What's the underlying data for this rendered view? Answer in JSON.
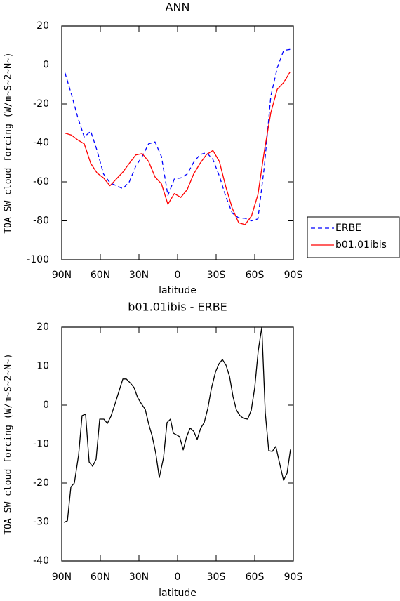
{
  "chart_data": [
    {
      "type": "line",
      "title": "ANN",
      "x_label": "latitude",
      "y_label": "TOA SW cloud forcing (W/m~S~2~N~)",
      "x": [
        87.5,
        82.5,
        77.5,
        72.5,
        67.5,
        62.5,
        57.5,
        52.5,
        47.5,
        42.5,
        37.5,
        32.5,
        27.5,
        22.5,
        17.5,
        12.5,
        7.5,
        2.5,
        -2.5,
        -7.5,
        -12.5,
        -17.5,
        -22.5,
        -27.5,
        -32.5,
        -37.5,
        -42.5,
        -47.5,
        -52.5,
        -57.5,
        -62.5,
        -67.5,
        -72.5,
        -77.5,
        -82.5,
        -87.5
      ],
      "series": [
        {
          "name": "ERBE",
          "color": "#0000ff",
          "dashed": true,
          "values": [
            -4,
            -15,
            -27,
            -37,
            -34,
            -44,
            -56,
            -60.5,
            -62,
            -63.5,
            -60,
            -52,
            -47,
            -40.5,
            -39.5,
            -47,
            -67,
            -58.5,
            -58,
            -56,
            -50,
            -46,
            -45,
            -48.5,
            -57,
            -67.5,
            -76,
            -78.5,
            -78.7,
            -80,
            -79,
            -52,
            -16,
            -1.5,
            7.5,
            8
          ]
        },
        {
          "name": "b01.01ibis",
          "color": "#ff0000",
          "dashed": false,
          "values": [
            -35,
            -36,
            -38.5,
            -40.5,
            -50.5,
            -55.5,
            -58,
            -62,
            -58.5,
            -55,
            -50.5,
            -46.2,
            -45.5,
            -49.5,
            -57.5,
            -61,
            -71.5,
            -66,
            -68,
            -64,
            -56,
            -50.5,
            -46,
            -43.9,
            -49.5,
            -62.5,
            -73.5,
            -81,
            -82,
            -77.5,
            -66.5,
            -44,
            -24.5,
            -12.5,
            -9,
            -3.5
          ]
        }
      ],
      "xlim": [
        90,
        -90
      ],
      "xticks": [
        {
          "value": 90,
          "label": "90N"
        },
        {
          "value": 60,
          "label": "60N"
        },
        {
          "value": 30,
          "label": "30N"
        },
        0,
        {
          "value": -30,
          "label": "30S"
        },
        {
          "value": -60,
          "label": "60S"
        },
        {
          "value": -90,
          "label": "90S"
        }
      ],
      "ylim": [
        -100,
        20
      ],
      "yticks": [
        -100,
        -80,
        -60,
        -40,
        -20,
        0,
        20
      ],
      "legend": "outside-right"
    },
    {
      "type": "line",
      "title": "b01.01ibis - ERBE",
      "x_label": "latitude",
      "y_label": "TOA SW cloud forcing (W/m~S~2~N~)",
      "x": [
        88.4,
        85.6,
        82.9,
        80.2,
        76.9,
        74.2,
        71.5,
        68.7,
        66,
        63.3,
        60.5,
        57.3,
        54.5,
        51.8,
        48.5,
        45.3,
        42.5,
        39.8,
        36.5,
        33.8,
        31.1,
        28.4,
        25.1,
        22.4,
        19.6,
        16.9,
        14.2,
        10.9,
        8.2,
        5.5,
        3.3,
        0.5,
        -1.6,
        -4.4,
        -7.1,
        -9.8,
        -12.5,
        -15.3,
        -18,
        -20.7,
        -23.5,
        -26.2,
        -29.5,
        -32.2,
        -34.9,
        -37.6,
        -40.4,
        -43.1,
        -45.8,
        -48.5,
        -51.3,
        -54.5,
        -57.3,
        -60,
        -62.7,
        -65.5,
        -68.2,
        -70.9,
        -73.6,
        -76.4,
        -79.1,
        -82.4,
        -85.1,
        -87.8
      ],
      "color": "#000000",
      "values": [
        -30.1,
        -29.7,
        -21,
        -20,
        -12.8,
        -2.7,
        -2.3,
        -14.6,
        -15.7,
        -13.9,
        -3.6,
        -3.6,
        -4.7,
        -2.9,
        0.4,
        3.8,
        6.7,
        6.7,
        5.6,
        4.5,
        2,
        0.5,
        -1.1,
        -4.9,
        -8.1,
        -12.4,
        -18.6,
        -13.5,
        -4.5,
        -3.6,
        -7.2,
        -7.7,
        -8.1,
        -11.5,
        -8.1,
        -5.9,
        -6.7,
        -8.8,
        -5.9,
        -4.5,
        -0.9,
        4.1,
        8.5,
        10.6,
        11.7,
        10.3,
        7.4,
        2.2,
        -1.3,
        -2.7,
        -3.4,
        -3.6,
        -1.3,
        4.5,
        13.9,
        20,
        -2,
        -11.7,
        -11.9,
        -10.6,
        -14.6,
        -19.3,
        -17.5,
        -11.4
      ],
      "xlim": [
        90,
        -90
      ],
      "xticks": [
        {
          "value": 90,
          "label": "90N"
        },
        {
          "value": 60,
          "label": "60N"
        },
        {
          "value": 30,
          "label": "30N"
        },
        0,
        {
          "value": -30,
          "label": "30S"
        },
        {
          "value": -60,
          "label": "60S"
        },
        {
          "value": -90,
          "label": "90S"
        }
      ],
      "ylim": [
        -40,
        20
      ],
      "yticks": [
        -40,
        -30,
        -20,
        -10,
        0,
        10,
        20
      ]
    }
  ]
}
